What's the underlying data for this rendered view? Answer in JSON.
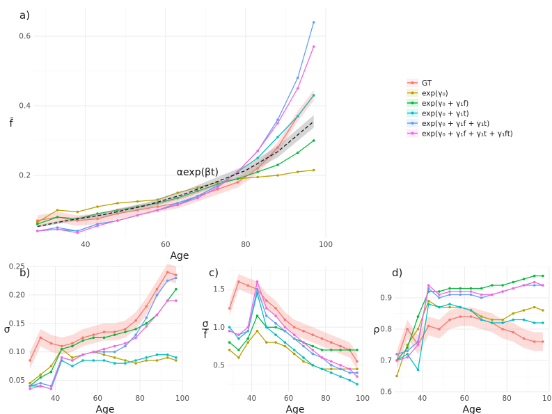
{
  "legend": {
    "placement": "right",
    "items": [
      {
        "label": "GT",
        "color": "#F8766D"
      },
      {
        "label": "exp(γ₀)",
        "color": "#B79F00"
      },
      {
        "label": "exp(γ₀ + γ₁f)",
        "color": "#00BA38"
      },
      {
        "label": "exp(γ₀ + γ₁t)",
        "color": "#00BFC4"
      },
      {
        "label": "exp(γ₀ + γ₁f + γ₁t)",
        "color": "#619CFF"
      },
      {
        "label": "exp(γ₀ + γ₁f + γ₁t + γ₁ft)",
        "color": "#F564E3"
      }
    ]
  },
  "chart_data": [
    {
      "panel": "a)",
      "type": "line",
      "xlabel": "Age",
      "ylabel": "f̄",
      "xlim": [
        27,
        100
      ],
      "ylim": [
        0.02,
        0.68
      ],
      "xticks": [
        40,
        60,
        80,
        100
      ],
      "yticks": [
        0.2,
        0.4,
        0.6
      ],
      "grid": true,
      "annotation": {
        "text": "αexp(βt)",
        "x": 68,
        "y": 0.2
      },
      "fit": {
        "x": [
          28,
          35,
          45,
          55,
          65,
          72,
          80,
          88,
          97
        ],
        "y": [
          0.053,
          0.069,
          0.088,
          0.113,
          0.147,
          0.178,
          0.214,
          0.268,
          0.355
        ],
        "band": 0.015
      },
      "x": [
        28,
        33,
        38,
        43,
        48,
        53,
        58,
        63,
        68,
        73,
        78,
        83,
        88,
        93,
        97
      ],
      "series": [
        {
          "name": "GT",
          "values": [
            0.07,
            0.08,
            0.07,
            0.075,
            0.09,
            0.1,
            0.11,
            0.12,
            0.14,
            0.16,
            0.18,
            0.22,
            0.28,
            0.37,
            0.43
          ],
          "band": 0.015
        },
        {
          "name": "exp(γ₀)",
          "values": [
            0.065,
            0.1,
            0.095,
            0.11,
            0.12,
            0.125,
            0.13,
            0.15,
            0.165,
            0.18,
            0.19,
            0.195,
            0.2,
            0.21,
            0.215
          ]
        },
        {
          "name": "exp(γ₀ + γ₁f)",
          "values": [
            0.06,
            0.08,
            0.075,
            0.09,
            0.1,
            0.11,
            0.12,
            0.135,
            0.155,
            0.175,
            0.19,
            0.21,
            0.23,
            0.265,
            0.3
          ]
        },
        {
          "name": "exp(γ₀ + γ₁t)",
          "values": [
            0.04,
            0.045,
            0.04,
            0.06,
            0.07,
            0.085,
            0.1,
            0.115,
            0.14,
            0.17,
            0.21,
            0.25,
            0.31,
            0.37,
            0.43
          ]
        },
        {
          "name": "exp(γ₀ + γ₁f + γ₁t)",
          "values": [
            0.04,
            0.05,
            0.04,
            0.06,
            0.07,
            0.085,
            0.1,
            0.12,
            0.14,
            0.17,
            0.21,
            0.27,
            0.36,
            0.48,
            0.64
          ]
        },
        {
          "name": "exp(γ₀ + γ₁f + γ₁t + γ₁ft)",
          "values": [
            0.04,
            0.045,
            0.035,
            0.055,
            0.07,
            0.085,
            0.1,
            0.115,
            0.135,
            0.165,
            0.21,
            0.27,
            0.35,
            0.45,
            0.57
          ]
        }
      ]
    },
    {
      "panel": "b)",
      "type": "line",
      "xlabel": "Age",
      "ylabel": "σ",
      "xlim": [
        27,
        100
      ],
      "ylim": [
        0.03,
        0.25
      ],
      "xticks": [
        40,
        60,
        80,
        100
      ],
      "yticks": [
        0.05,
        0.1,
        0.15,
        0.2,
        0.25
      ],
      "ytick_labels": [
        "0.05",
        "0.10",
        "0.15",
        "0.20",
        "0.25"
      ],
      "grid": true,
      "x": [
        28,
        33,
        38,
        43,
        48,
        53,
        58,
        63,
        68,
        73,
        78,
        83,
        88,
        93,
        97
      ],
      "series": [
        {
          "name": "GT",
          "values": [
            0.085,
            0.125,
            0.115,
            0.11,
            0.115,
            0.125,
            0.13,
            0.135,
            0.135,
            0.14,
            0.155,
            0.18,
            0.21,
            0.24,
            0.235
          ],
          "band": 0.015
        },
        {
          "name": "exp(γ₀)",
          "values": [
            0.045,
            0.06,
            0.075,
            0.105,
            0.09,
            0.095,
            0.1,
            0.095,
            0.09,
            0.085,
            0.08,
            0.085,
            0.085,
            0.09,
            0.085
          ]
        },
        {
          "name": "exp(γ₀ + γ₁f)",
          "values": [
            0.04,
            0.055,
            0.065,
            0.105,
            0.11,
            0.12,
            0.125,
            0.125,
            0.13,
            0.135,
            0.14,
            0.15,
            0.165,
            0.19,
            0.21
          ]
        },
        {
          "name": "exp(γ₀ + γ₁t)",
          "values": [
            0.04,
            0.04,
            0.035,
            0.085,
            0.075,
            0.085,
            0.085,
            0.085,
            0.08,
            0.08,
            0.085,
            0.09,
            0.095,
            0.095,
            0.09
          ]
        },
        {
          "name": "exp(γ₀ + γ₁f + γ₁t)",
          "values": [
            0.04,
            0.045,
            0.04,
            0.09,
            0.085,
            0.095,
            0.1,
            0.1,
            0.1,
            0.11,
            0.13,
            0.16,
            0.2,
            0.225,
            0.23
          ]
        },
        {
          "name": "exp(γ₀ + γ₁f + γ₁t + γ₁ft)",
          "values": [
            0.035,
            0.04,
            0.035,
            0.09,
            0.085,
            0.095,
            0.1,
            0.105,
            0.11,
            0.115,
            0.125,
            0.145,
            0.165,
            0.19,
            0.19
          ]
        }
      ]
    },
    {
      "panel": "c)",
      "type": "line",
      "xlabel": "Age",
      "ylabel": "σ / f̄",
      "xlim": [
        27,
        100
      ],
      "ylim": [
        0.15,
        1.8
      ],
      "xticks": [
        40,
        60,
        80,
        100
      ],
      "yticks": [
        0.5,
        1.0,
        1.5
      ],
      "ytick_labels": [
        "0.5",
        "1.0",
        "1.5"
      ],
      "grid": true,
      "x": [
        28,
        33,
        38,
        43,
        48,
        53,
        58,
        63,
        68,
        73,
        78,
        83,
        88,
        93,
        97
      ],
      "series": [
        {
          "name": "GT",
          "values": [
            1.25,
            1.6,
            1.55,
            1.5,
            1.35,
            1.25,
            1.1,
            1.0,
            0.95,
            0.9,
            0.85,
            0.8,
            0.75,
            0.7,
            0.55
          ],
          "band": 0.1
        },
        {
          "name": "exp(γ₀)",
          "values": [
            0.7,
            0.6,
            0.8,
            0.95,
            0.8,
            0.8,
            0.75,
            0.65,
            0.55,
            0.5,
            0.45,
            0.45,
            0.45,
            0.45,
            0.45
          ]
        },
        {
          "name": "exp(γ₀ + γ₁f)",
          "values": [
            0.8,
            0.7,
            0.85,
            1.15,
            1.0,
            1.0,
            0.95,
            0.85,
            0.8,
            0.75,
            0.7,
            0.7,
            0.7,
            0.7,
            0.7
          ]
        },
        {
          "name": "exp(γ₀ + γ₁t)",
          "values": [
            1.0,
            0.85,
            0.95,
            1.45,
            1.0,
            0.9,
            0.8,
            0.7,
            0.6,
            0.5,
            0.45,
            0.4,
            0.35,
            0.3,
            0.25
          ]
        },
        {
          "name": "exp(γ₀ + γ₁f + γ₁t)",
          "values": [
            0.95,
            0.9,
            0.95,
            1.5,
            1.15,
            1.05,
            0.95,
            0.85,
            0.75,
            0.65,
            0.6,
            0.5,
            0.45,
            0.4,
            0.4
          ]
        },
        {
          "name": "exp(γ₀ + γ₁f + γ₁t + γ₁ft)",
          "values": [
            0.95,
            0.9,
            1.0,
            1.6,
            1.25,
            1.15,
            1.0,
            0.9,
            0.8,
            0.7,
            0.6,
            0.55,
            0.5,
            0.45,
            0.35
          ]
        }
      ]
    },
    {
      "panel": "d)",
      "type": "line",
      "xlabel": "Age",
      "ylabel": "ρ",
      "xlim": [
        27,
        100
      ],
      "ylim": [
        0.6,
        1.0
      ],
      "xticks": [
        40,
        60,
        80,
        100
      ],
      "yticks": [
        0.6,
        0.7,
        0.8,
        0.9
      ],
      "ytick_labels": [
        "0.6",
        "0.7",
        "0.8",
        "0.9"
      ],
      "grid": true,
      "x": [
        28,
        33,
        38,
        43,
        48,
        53,
        58,
        63,
        68,
        73,
        78,
        83,
        88,
        93,
        97
      ],
      "series": [
        {
          "name": "GT",
          "values": [
            0.7,
            0.8,
            0.75,
            0.81,
            0.8,
            0.83,
            0.84,
            0.84,
            0.83,
            0.82,
            0.8,
            0.79,
            0.77,
            0.76,
            0.76
          ],
          "band": 0.03
        },
        {
          "name": "exp(γ₀)",
          "values": [
            0.65,
            0.75,
            0.8,
            0.89,
            0.87,
            0.87,
            0.87,
            0.86,
            0.84,
            0.83,
            0.83,
            0.85,
            0.86,
            0.87,
            0.86
          ]
        },
        {
          "name": "exp(γ₀ + γ₁f)",
          "values": [
            0.7,
            0.74,
            0.84,
            0.92,
            0.92,
            0.93,
            0.93,
            0.93,
            0.93,
            0.94,
            0.94,
            0.95,
            0.96,
            0.97,
            0.97
          ]
        },
        {
          "name": "exp(γ₀ + γ₁t)",
          "values": [
            0.7,
            0.72,
            0.67,
            0.88,
            0.87,
            0.88,
            0.87,
            0.86,
            0.83,
            0.82,
            0.82,
            0.83,
            0.83,
            0.82,
            0.82
          ]
        },
        {
          "name": "exp(γ₀ + γ₁f + γ₁t)",
          "values": [
            0.72,
            0.73,
            0.76,
            0.93,
            0.9,
            0.91,
            0.91,
            0.91,
            0.9,
            0.91,
            0.92,
            0.93,
            0.94,
            0.94,
            0.94
          ]
        },
        {
          "name": "exp(γ₀ + γ₁f + γ₁t + γ₁ft)",
          "values": [
            0.7,
            0.71,
            0.75,
            0.94,
            0.91,
            0.92,
            0.92,
            0.92,
            0.91,
            0.91,
            0.92,
            0.93,
            0.94,
            0.95,
            0.94
          ]
        }
      ]
    }
  ]
}
